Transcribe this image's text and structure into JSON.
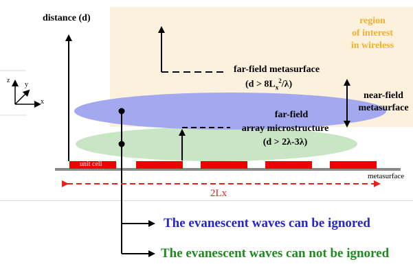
{
  "labels": {
    "distance_axis": "distance (d)",
    "region_of_interest": [
      "region",
      "of interest",
      "in wireless"
    ],
    "far_field_metasurface": "far-field metasurface",
    "far_field_condition": "(d > 8L",
    "far_field_sub_x": "x",
    "far_field_sup_2": "2",
    "far_field_condition_tail": "/λ)",
    "near_field_metasurface": [
      "near-field",
      "metasurface"
    ],
    "far_field_array": [
      "far-field",
      "array microstructure"
    ],
    "array_condition": "(d > 2λ-3λ)",
    "unit_cell": "unit cell",
    "metasurface": "metasurface",
    "period": "2Lx",
    "axis_x": "x",
    "axis_y": "y",
    "axis_z": "z",
    "evanescent_blue": "The evanescent waves can be ignored",
    "evanescent_green": "The evanescent waves can not be ignored"
  },
  "colors": {
    "region_fill": "#fbf1dd",
    "region_text": "#f0b030",
    "blue_ellipse": "#a4a8ee",
    "green_ellipse": "#c8e6c4",
    "unit_cell_red": "#ee0000",
    "period_arrow": "#e82020",
    "blue_text": "#2525cc",
    "green_text": "#1f8a1f",
    "metasurface_gray": "#8a8a8a"
  }
}
